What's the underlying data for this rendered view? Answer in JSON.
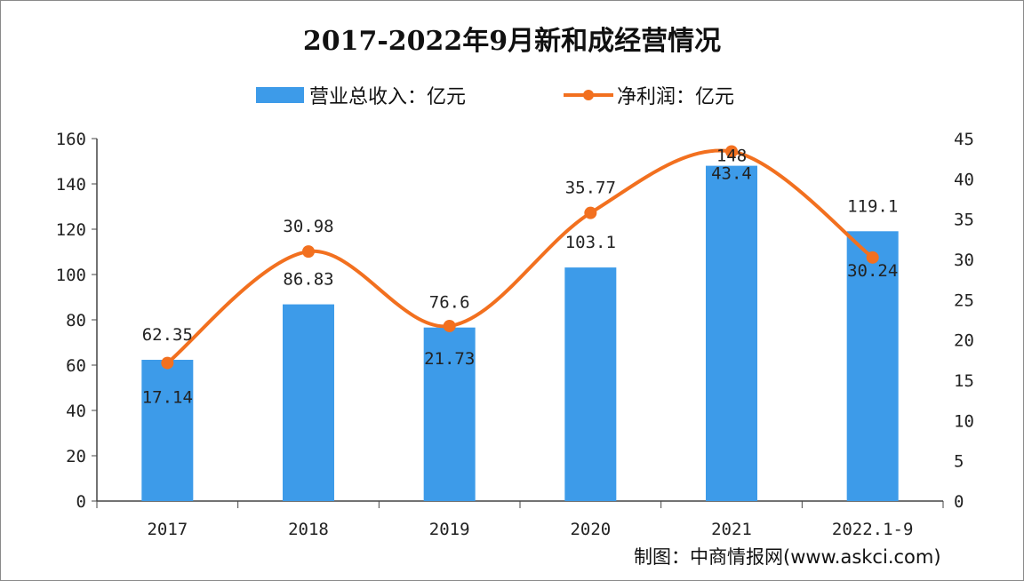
{
  "chart_data": {
    "type": "bar+line",
    "title": "2017-2022年9月新和成经营情况",
    "categories": [
      "2017",
      "2018",
      "2019",
      "2020",
      "2021",
      "2022.1-9"
    ],
    "series": [
      {
        "name": "营业总收入：亿元",
        "type": "bar",
        "axis": "left",
        "color": "#3d9be9",
        "values": [
          62.35,
          86.83,
          76.6,
          103.1,
          148,
          119.1
        ],
        "labels": [
          "62.35",
          "86.83",
          "76.6",
          "103.1",
          "148",
          "119.1"
        ]
      },
      {
        "name": "净利润：亿元",
        "type": "line",
        "axis": "right",
        "color": "#f2701f",
        "values": [
          17.14,
          30.98,
          21.73,
          35.77,
          43.4,
          30.24
        ],
        "labels": [
          "17.14",
          "30.98",
          "21.73",
          "35.77",
          "43.4",
          "30.24"
        ]
      }
    ],
    "left_axis": {
      "range": [
        0,
        160
      ],
      "ticks": [
        "0",
        "20",
        "40",
        "60",
        "80",
        "100",
        "120",
        "140",
        "160"
      ]
    },
    "right_axis": {
      "range": [
        0,
        45
      ],
      "ticks": [
        "0",
        "5",
        "10",
        "15",
        "20",
        "25",
        "30",
        "35",
        "40",
        "45"
      ]
    },
    "grid": false,
    "legend_position": "top",
    "credit": "制图：中商情报网(www.askci.com)"
  }
}
